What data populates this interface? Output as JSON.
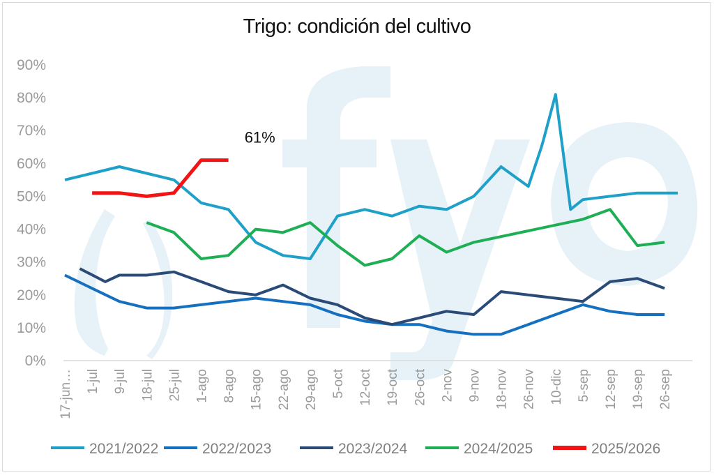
{
  "chart_data": {
    "type": "line",
    "title": "Trigo: condición del cultivo",
    "xlabel": "",
    "ylabel": "",
    "ylim": [
      0,
      90
    ],
    "y_ticks": [
      "0%",
      "10%",
      "20%",
      "30%",
      "40%",
      "50%",
      "60%",
      "70%",
      "80%",
      "90%"
    ],
    "grid": false,
    "legend_position": "bottom",
    "categories": [
      "17-jun…",
      "1-jul",
      "9-jul",
      "18-jul",
      "25-jul",
      "1-ago",
      "8-ago",
      "15-ago",
      "22-ago",
      "29-ago",
      "5-oct",
      "12-oct",
      "19-oct",
      "26-oct",
      "2-nov",
      "9-nov",
      "18-nov",
      "26-nov",
      "10-dic",
      "5-sep",
      "12-sep",
      "19-sep",
      "26-sep"
    ],
    "series": [
      {
        "name": "2021/2022",
        "color": "#1FA0C8",
        "points": [
          [
            "17-jun…",
            55
          ],
          [
            "1-jul",
            57
          ],
          [
            "9-jul",
            59
          ],
          [
            "18-jul",
            57
          ],
          [
            "25-jul",
            55
          ],
          [
            "1-ago",
            48
          ],
          [
            "8-ago",
            46
          ],
          [
            "15-ago",
            36
          ],
          [
            "22-ago",
            32
          ],
          [
            "29-ago",
            31
          ],
          [
            "5-oct",
            44
          ],
          [
            "12-oct",
            46
          ],
          [
            "19-oct",
            44
          ],
          [
            "26-oct",
            47
          ],
          [
            "2-nov",
            46
          ],
          [
            "9-nov",
            50
          ],
          [
            "18-nov",
            59
          ],
          [
            "26-nov",
            53
          ],
          [
            "26-nov+",
            65
          ],
          [
            "10-dic-",
            67
          ],
          [
            "10-dic",
            81
          ],
          [
            "5-sep-",
            46
          ],
          [
            "5-sep",
            49
          ],
          [
            "12-sep",
            50
          ],
          [
            "19-sep",
            51
          ],
          [
            "26-sep",
            51
          ],
          [
            "26-sep+",
            51
          ]
        ]
      },
      {
        "name": "2022/2023",
        "color": "#1570C0",
        "points": [
          [
            "17-jun…",
            26
          ],
          [
            "1-jul",
            22
          ],
          [
            "9-jul",
            18
          ],
          [
            "18-jul",
            16
          ],
          [
            "25-jul",
            16
          ],
          [
            "1-ago",
            17
          ],
          [
            "8-ago",
            18
          ],
          [
            "15-ago",
            19
          ],
          [
            "22-ago",
            18
          ],
          [
            "29-ago",
            17
          ],
          [
            "5-oct",
            14
          ],
          [
            "12-oct",
            12
          ],
          [
            "19-oct",
            11
          ],
          [
            "26-oct",
            11
          ],
          [
            "2-nov",
            9
          ],
          [
            "9-nov",
            8
          ],
          [
            "18-nov",
            8
          ],
          [
            "26-nov",
            11
          ],
          [
            "10-dic",
            14
          ],
          [
            "5-sep",
            17
          ],
          [
            "12-sep",
            15
          ],
          [
            "19-sep",
            14
          ],
          [
            "26-sep",
            14
          ]
        ]
      },
      {
        "name": "2023/2024",
        "color": "#2A4A78",
        "points": [
          [
            "1-jul-",
            28
          ],
          [
            "1-jul+",
            24
          ],
          [
            "9-jul",
            26
          ],
          [
            "18-jul",
            26
          ],
          [
            "25-jul",
            27
          ],
          [
            "1-ago",
            24
          ],
          [
            "8-ago",
            21
          ],
          [
            "15-ago",
            20
          ],
          [
            "22-ago",
            23
          ],
          [
            "29-ago",
            19
          ],
          [
            "5-oct",
            17
          ],
          [
            "12-oct",
            13
          ],
          [
            "19-oct",
            11
          ],
          [
            "26-oct",
            13
          ],
          [
            "2-nov",
            15
          ],
          [
            "9-nov",
            14
          ],
          [
            "18-nov",
            21
          ],
          [
            "26-nov",
            20
          ],
          [
            "10-dic",
            19
          ],
          [
            "5-sep",
            18
          ],
          [
            "12-sep",
            24
          ],
          [
            "19-sep",
            25
          ],
          [
            "26-sep",
            22
          ]
        ]
      },
      {
        "name": "2024/2025",
        "color": "#1EAF55",
        "points": [
          [
            "18-jul",
            42
          ],
          [
            "25-jul",
            39
          ],
          [
            "1-ago",
            31
          ],
          [
            "8-ago",
            32
          ],
          [
            "15-ago",
            40
          ],
          [
            "22-ago",
            39
          ],
          [
            "29-ago",
            42
          ],
          [
            "5-oct",
            35
          ],
          [
            "12-oct",
            29
          ],
          [
            "19-oct",
            31
          ],
          [
            "26-oct",
            38
          ],
          [
            "2-nov",
            33
          ],
          [
            "9-nov",
            36
          ],
          [
            "5-sep",
            43
          ],
          [
            "12-sep",
            46
          ],
          [
            "19-sep",
            35
          ],
          [
            "26-sep",
            36
          ]
        ]
      },
      {
        "name": "2025/2026",
        "color": "#F21414",
        "points": [
          [
            "1-jul",
            51
          ],
          [
            "9-jul",
            51
          ],
          [
            "18-jul",
            50
          ],
          [
            "25-jul",
            51
          ],
          [
            "1-ago",
            61
          ],
          [
            "8-ago",
            61
          ]
        ]
      }
    ],
    "annotations": [
      {
        "text": "61%",
        "x": "15-ago",
        "y": 68
      }
    ]
  }
}
